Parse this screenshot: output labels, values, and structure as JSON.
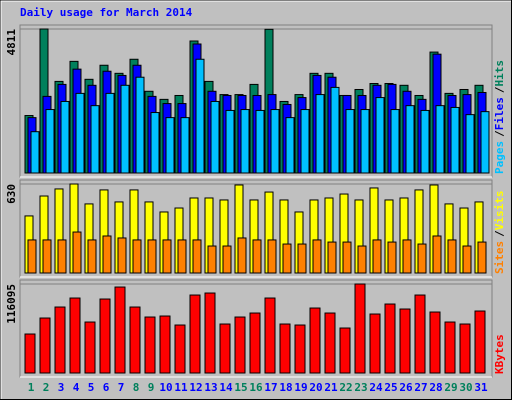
{
  "title": "Daily usage for March 2014",
  "legend_separator": "/",
  "chart_data": [
    {
      "type": "bar",
      "ylim": [
        0,
        4811
      ],
      "yticks": [
        4811
      ],
      "series": [
        {
          "name": "Hits",
          "color": "#00805c",
          "values": [
            1920,
            4811,
            3060,
            3730,
            3130,
            3600,
            3330,
            3800,
            2730,
            2460,
            2590,
            4410,
            3060,
            2620,
            2620,
            2960,
            4800,
            2390,
            2620,
            3330,
            3330,
            2590,
            2790,
            2990,
            2990,
            2930,
            2590,
            4040,
            2660,
            2790,
            2930
          ]
        },
        {
          "name": "Files",
          "color": "#0000ff",
          "values": [
            1850,
            2560,
            2960,
            3470,
            2930,
            3400,
            3260,
            3600,
            2560,
            2320,
            2320,
            4310,
            2730,
            2590,
            2590,
            2590,
            2620,
            2290,
            2520,
            3260,
            3200,
            2590,
            2590,
            2930,
            2960,
            2730,
            2460,
            3970,
            2590,
            2620,
            2690
          ]
        },
        {
          "name": "Pages",
          "color": "#00c0ff",
          "values": [
            1380,
            2120,
            2390,
            2660,
            2250,
            2660,
            2930,
            3200,
            2020,
            1850,
            1850,
            3800,
            2390,
            2090,
            2120,
            2090,
            2120,
            1850,
            2120,
            2620,
            2860,
            2120,
            2120,
            2520,
            2120,
            2250,
            2090,
            2250,
            2190,
            1950,
            2050
          ]
        }
      ]
    },
    {
      "type": "bar",
      "ylim": [
        0,
        630
      ],
      "yticks": [
        630
      ],
      "series": [
        {
          "name": "Visits",
          "color": "#ffff00",
          "values": [
            404,
            545,
            595,
            630,
            489,
            588,
            503,
            588,
            503,
            432,
            460,
            531,
            531,
            517,
            623,
            517,
            573,
            517,
            432,
            517,
            531,
            559,
            517,
            602,
            517,
            531,
            588,
            623,
            489,
            460,
            503
          ]
        },
        {
          "name": "Sites",
          "color": "#ff8000",
          "values": [
            234,
            234,
            234,
            290,
            234,
            262,
            248,
            234,
            234,
            234,
            234,
            234,
            191,
            191,
            248,
            234,
            234,
            205,
            205,
            234,
            219,
            219,
            191,
            234,
            219,
            234,
            205,
            262,
            234,
            191,
            219
          ]
        }
      ]
    },
    {
      "type": "bar",
      "ylim": [
        0,
        116095
      ],
      "yticks": [
        116095
      ],
      "categories": [
        "1",
        "2",
        "3",
        "4",
        "5",
        "6",
        "7",
        "8",
        "9",
        "10",
        "11",
        "12",
        "13",
        "14",
        "15",
        "16",
        "17",
        "18",
        "19",
        "20",
        "21",
        "22",
        "23",
        "24",
        "25",
        "26",
        "27",
        "28",
        "29",
        "30",
        "31"
      ],
      "category_colors": [
        "#00805c",
        "#00805c",
        "#0000ff",
        "#0000ff",
        "#0000ff",
        "#0000ff",
        "#0000ff",
        "#00805c",
        "#00805c",
        "#0000ff",
        "#0000ff",
        "#0000ff",
        "#0000ff",
        "#0000ff",
        "#00805c",
        "#00805c",
        "#0000ff",
        "#0000ff",
        "#0000ff",
        "#0000ff",
        "#0000ff",
        "#00805c",
        "#00805c",
        "#0000ff",
        "#0000ff",
        "#0000ff",
        "#0000ff",
        "#0000ff",
        "#00805c",
        "#00805c",
        "#0000ff"
      ],
      "series": [
        {
          "name": "KBytes",
          "color": "#ff0000",
          "values": [
            50860,
            71720,
            86060,
            97800,
            66500,
            96500,
            112140,
            86060,
            73020,
            74330,
            62590,
            101710,
            104320,
            63900,
            73020,
            78240,
            97800,
            63900,
            62590,
            84760,
            78240,
            58680,
            116095,
            76940,
            89980,
            83460,
            101710,
            79540,
            66500,
            63900,
            80850
          ]
        }
      ]
    }
  ]
}
